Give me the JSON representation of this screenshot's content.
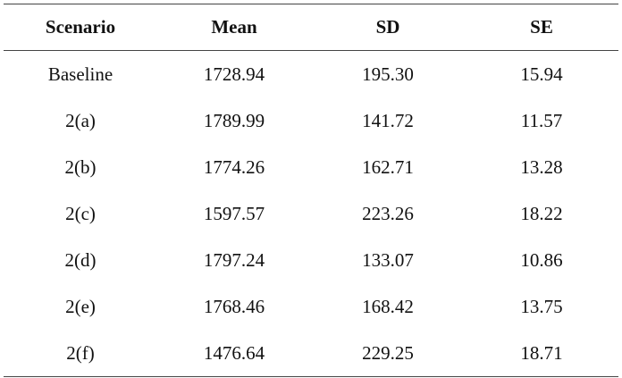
{
  "table": {
    "header": [
      "Scenario",
      "Mean",
      "SD",
      "SE"
    ],
    "rows": [
      [
        "Baseline",
        "1728.94",
        "195.30",
        "15.94"
      ],
      [
        "2(a)",
        "1789.99",
        "141.72",
        "11.57"
      ],
      [
        "2(b)",
        "1774.26",
        "162.71",
        "13.28"
      ],
      [
        "2(c)",
        "1597.57",
        "223.26",
        "18.22"
      ],
      [
        "2(d)",
        "1797.24",
        "133.07",
        "10.86"
      ],
      [
        "2(e)",
        "1768.46",
        "168.42",
        "13.75"
      ],
      [
        "2(f)",
        "1476.64",
        "229.25",
        "18.71"
      ]
    ]
  }
}
